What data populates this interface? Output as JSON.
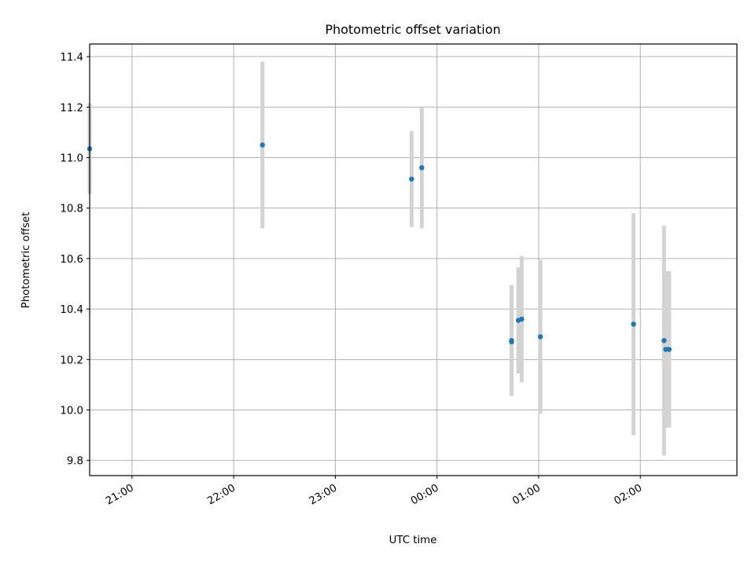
{
  "chart_data": {
    "type": "scatter",
    "title": "Photometric offset variation",
    "xlabel": "UTC time",
    "ylabel": "Photometric offset",
    "xlim": [
      "20:35",
      "02:57"
    ],
    "ylim": [
      9.74,
      11.45
    ],
    "grid": true,
    "x_ticks": [
      "21:00",
      "22:00",
      "23:00",
      "00:00",
      "01:00",
      "02:00"
    ],
    "y_ticks": [
      9.8,
      10.0,
      10.2,
      10.4,
      10.6,
      10.8,
      11.0,
      11.2,
      11.4
    ],
    "colors": {
      "point": "#1f77b4",
      "errorbar": "#d3d3d3",
      "grid": "#b0b0b0"
    },
    "series": [
      {
        "points": [
          {
            "time": "20:35",
            "y": 11.035,
            "err": 0.18
          },
          {
            "time": "22:17",
            "y": 11.05,
            "err": 0.33
          },
          {
            "time": "23:45",
            "y": 10.915,
            "err": 0.19
          },
          {
            "time": "23:51",
            "y": 10.96,
            "err": 0.24
          },
          {
            "time": "00:44",
            "y": 10.275,
            "err": 0.22
          },
          {
            "time": "00:44",
            "y": 10.27,
            "err": 0.21
          },
          {
            "time": "00:48",
            "y": 10.355,
            "err": 0.21
          },
          {
            "time": "00:50",
            "y": 10.36,
            "err": 0.25
          },
          {
            "time": "01:01",
            "y": 10.29,
            "err": 0.305
          },
          {
            "time": "01:56",
            "y": 10.34,
            "err": 0.44
          },
          {
            "time": "02:14",
            "y": 10.275,
            "err": 0.455
          },
          {
            "time": "02:15",
            "y": 10.24,
            "err": 0.31
          },
          {
            "time": "02:17",
            "y": 10.24,
            "err": 0.31
          }
        ]
      }
    ]
  }
}
